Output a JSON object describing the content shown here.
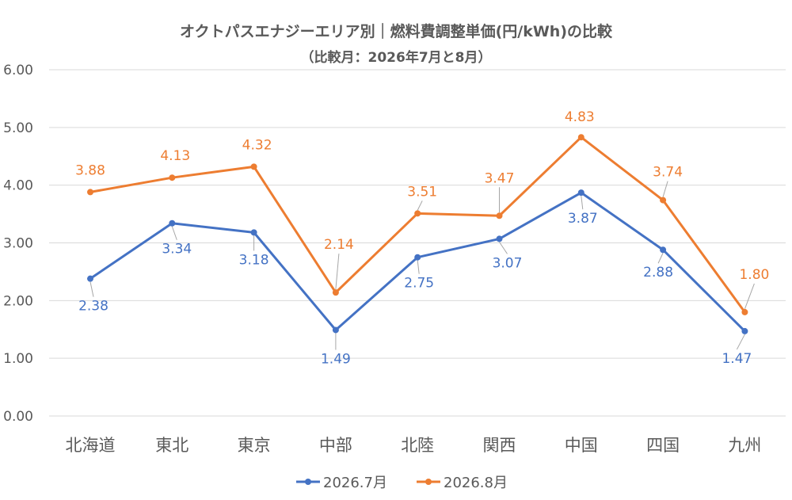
{
  "chart_data": {
    "type": "line",
    "title": "オクトパスエナジーエリア別｜燃料費調整単価(円/kWh)の比較",
    "subtitle": "（比較月：2026年7月と8月）",
    "categories": [
      "北海道",
      "東北",
      "東京",
      "中部",
      "北陸",
      "関西",
      "中国",
      "四国",
      "九州"
    ],
    "series": [
      {
        "name": "2026.7月",
        "color": "#4472C4",
        "values": [
          2.38,
          3.34,
          3.18,
          1.49,
          2.75,
          3.07,
          3.87,
          2.88,
          1.47
        ],
        "labels": [
          "2.38",
          "3.34",
          "3.18",
          "1.49",
          "2.75",
          "3.07",
          "3.87",
          "2.88",
          "1.47"
        ]
      },
      {
        "name": "2026.8月",
        "color": "#ED7D31",
        "values": [
          3.88,
          4.13,
          4.32,
          2.14,
          3.51,
          3.47,
          4.83,
          3.74,
          1.8
        ],
        "labels": [
          "3.88",
          "4.13",
          "4.32",
          "2.14",
          "3.51",
          "3.47",
          "4.83",
          "3.74",
          "1.80"
        ]
      }
    ],
    "ylim": [
      0,
      6
    ],
    "yticks": [
      "0.00",
      "1.00",
      "2.00",
      "3.00",
      "4.00",
      "5.00",
      "6.00"
    ],
    "grid": true,
    "legend_position": "bottom",
    "gridline_color": "#D9D9D9",
    "leader_color": "#A6A6A6"
  }
}
